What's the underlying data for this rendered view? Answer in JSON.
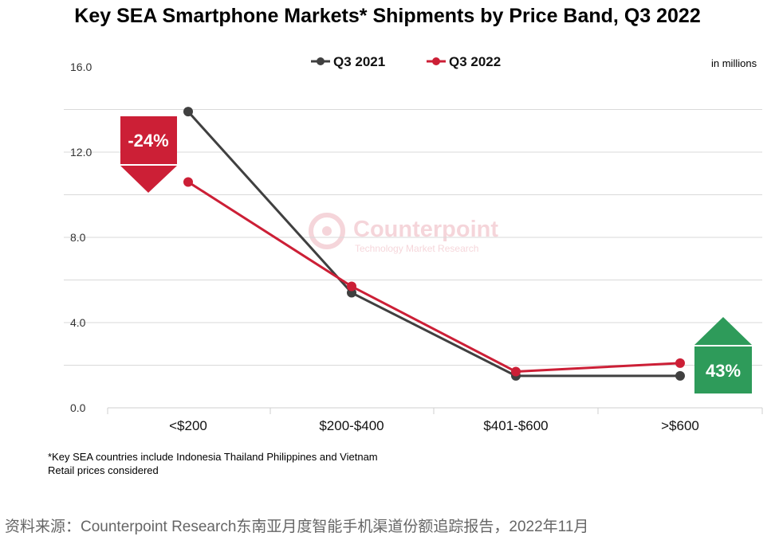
{
  "chart_data": {
    "type": "line",
    "title": "Key SEA Smartphone Markets* Shipments by Price Band, Q3 2022",
    "unit_note": "in millions",
    "categories": [
      "<$200",
      "$200-$400",
      "$401-$600",
      ">$600"
    ],
    "series": [
      {
        "name": "Q3 2021",
        "color": "#404040",
        "values": [
          13.9,
          5.4,
          1.5,
          1.5
        ]
      },
      {
        "name": "Q3 2022",
        "color": "#cc1f36",
        "values": [
          10.6,
          5.7,
          1.7,
          2.1
        ]
      }
    ],
    "y_ticks": [
      "16.0",
      "12.0",
      "8.0",
      "4.0",
      "0.0"
    ],
    "y_tick_values": [
      16,
      12,
      8,
      4,
      0
    ],
    "ylim": [
      0,
      16
    ],
    "legend_position": "top",
    "annotations": [
      {
        "text": "-24%",
        "direction": "down",
        "color": "#cc1f36",
        "category": "<$200"
      },
      {
        "text": "43%",
        "direction": "up",
        "color": "#2e9b5a",
        "category": ">$600"
      }
    ],
    "watermark": {
      "brand": "Counterpoint",
      "tagline": "Technology Market Research"
    }
  },
  "footnotes": [
    "*Key SEA countries include Indonesia Thailand Philippines and Vietnam",
    "Retail prices considered"
  ],
  "source": "资料来源：Counterpoint Research东南亚月度智能手机渠道份额追踪报告，2022年11月"
}
